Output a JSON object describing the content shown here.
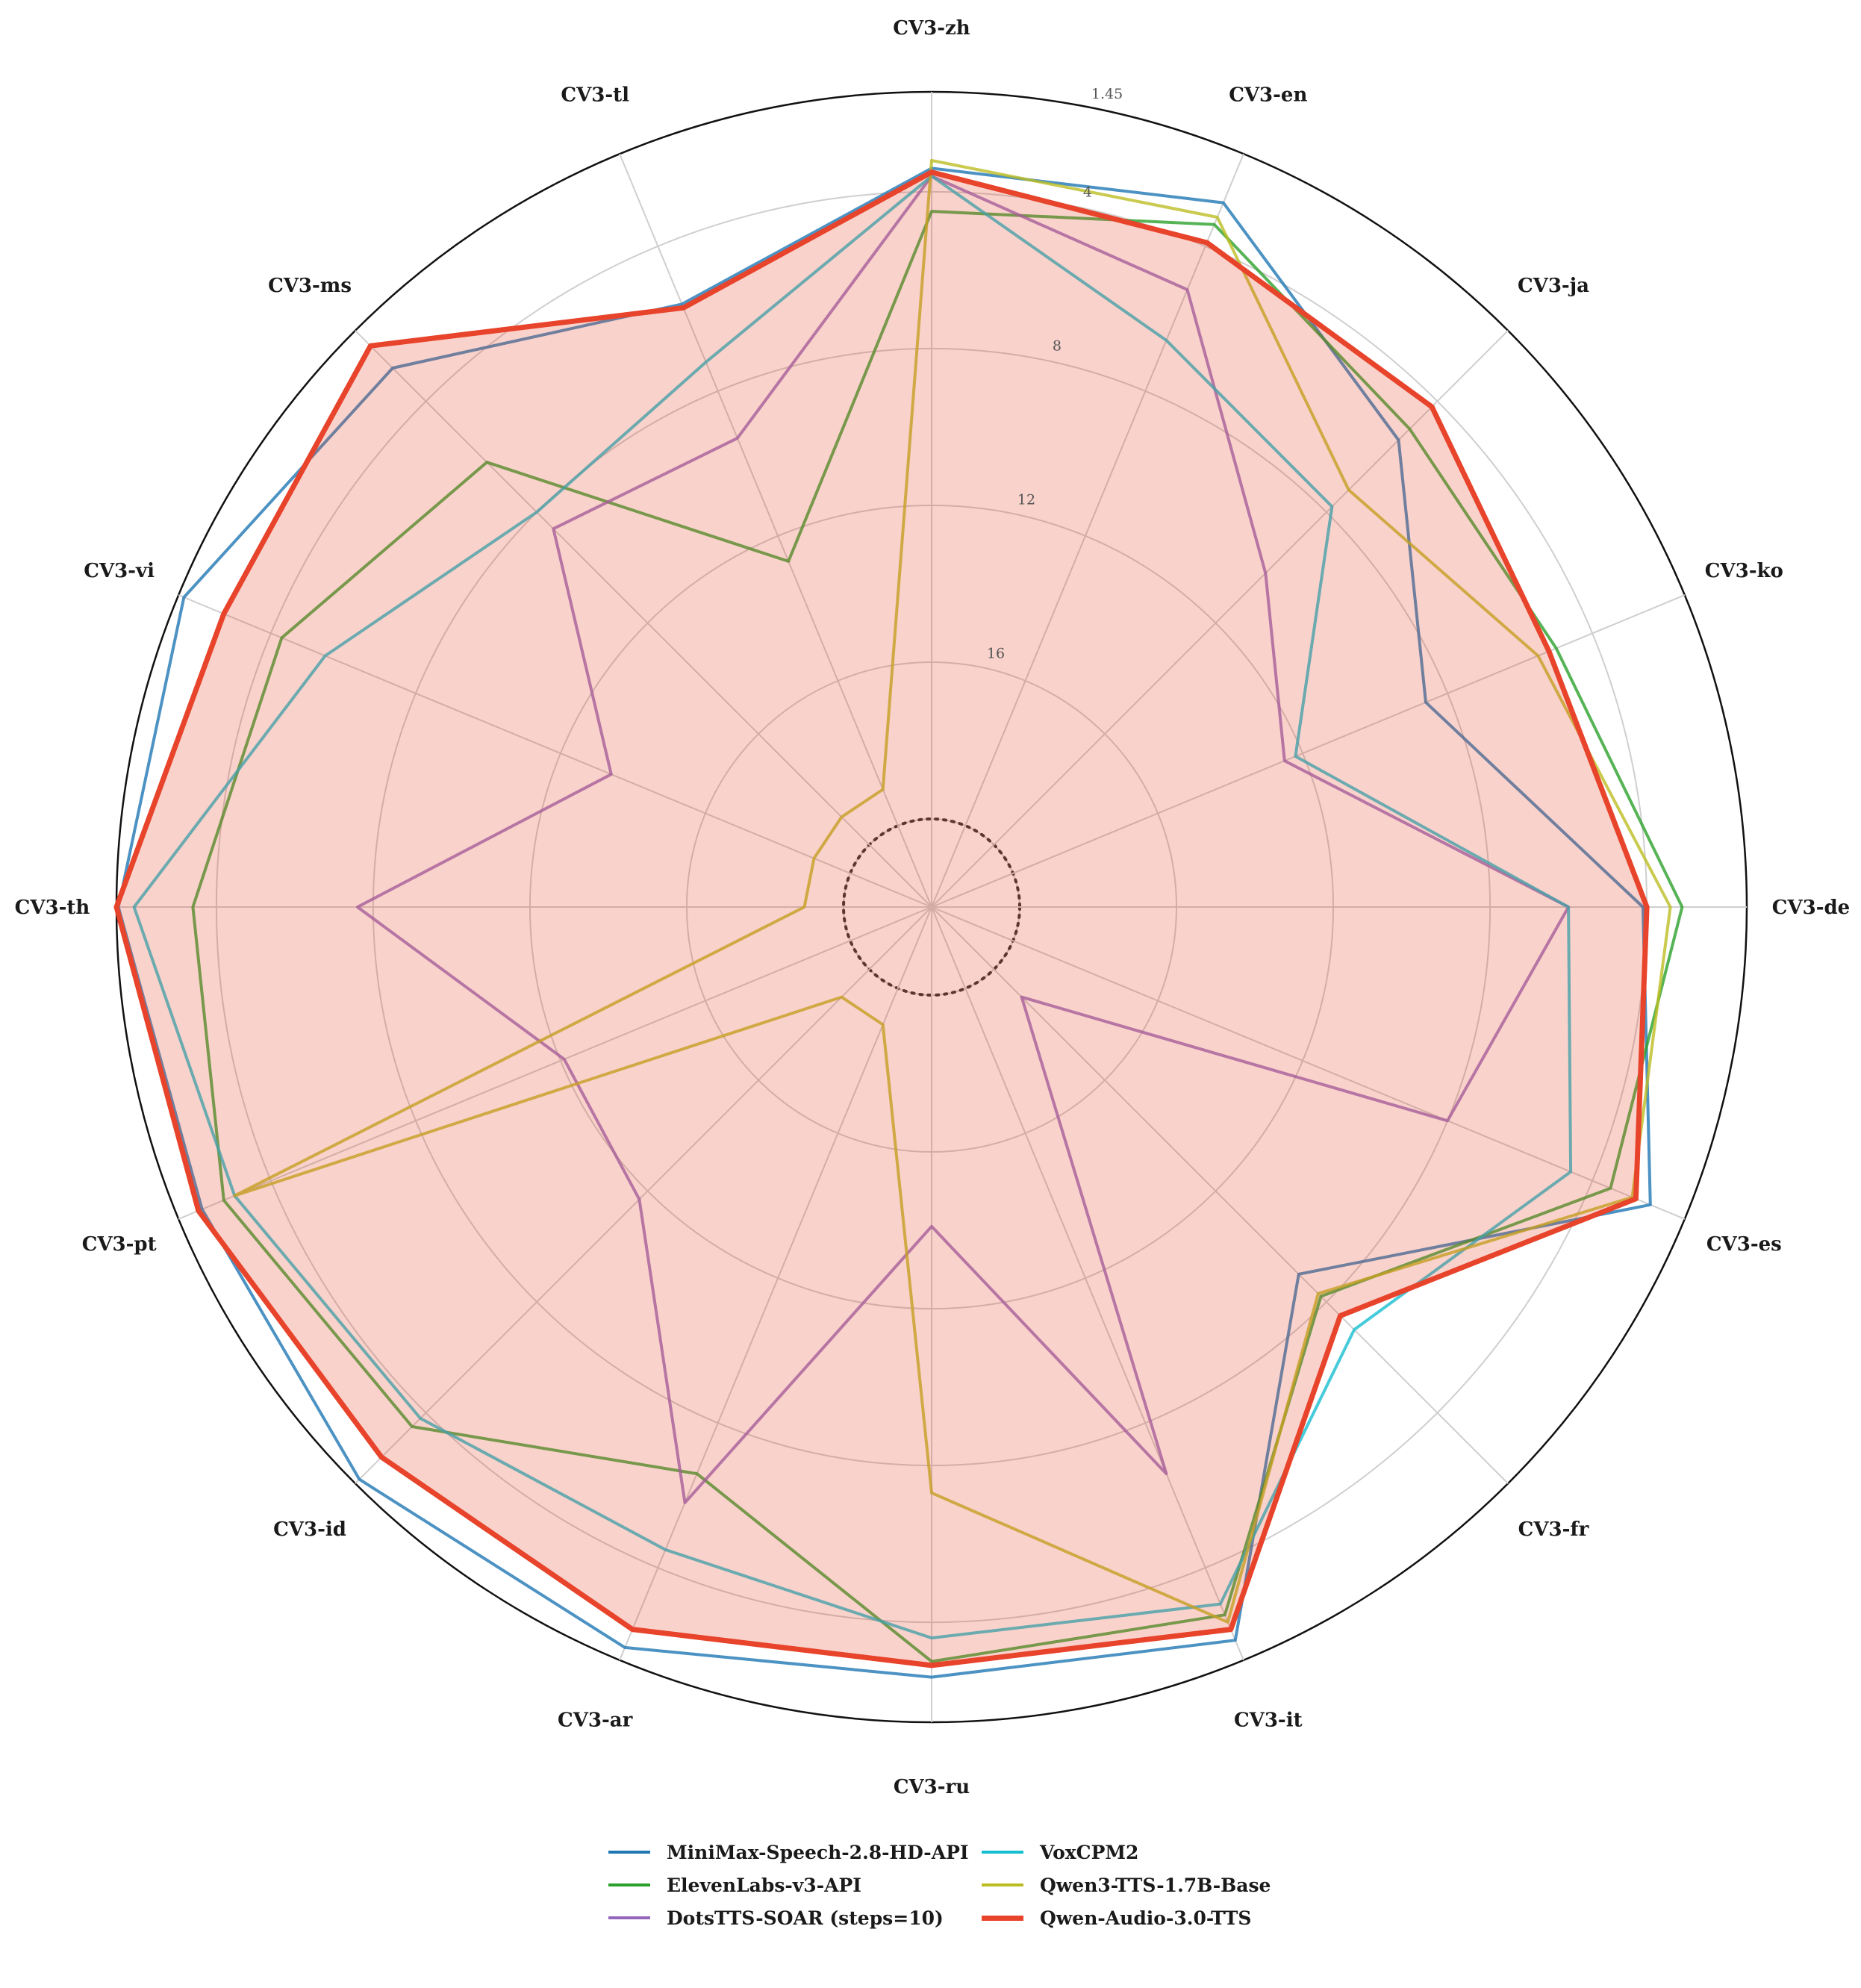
{
  "chart_data": {
    "type": "radar",
    "title": "",
    "categories": [
      "CV3-zh",
      "CV3-en",
      "CV3-ja",
      "CV3-ko",
      "CV3-de",
      "CV3-es",
      "CV3-fr",
      "CV3-it",
      "CV3-ru",
      "CV3-ar",
      "CV3-id",
      "CV3-pt",
      "CV3-th",
      "CV3-vi",
      "CV3-ms",
      "CV3-tl"
    ],
    "ring_labels": [
      "16",
      "12",
      "8",
      "4",
      "1.45"
    ],
    "ring_values": [
      16,
      12,
      8,
      4,
      1.45
    ],
    "axis_range": [
      20,
      1.45
    ],
    "grid": true,
    "legend_position": "bottom-center",
    "series": [
      {
        "name": "MiniMax-Speech-2.8-HD-API",
        "color": "#1f77b4",
        "values": [
          3.4,
          2.8,
          5.4,
          8.6,
          4.1,
          2.4,
          9.0,
          2.0,
          2.6,
          1.8,
          1.6,
          2.1,
          1.5,
          1.6,
          2.8,
          5.6
        ]
      },
      {
        "name": "ElevenLabs-v3-API",
        "color": "#2ca02c",
        "values": [
          4.5,
          3.4,
          5.0,
          5.0,
          3.1,
          3.5,
          8.2,
          2.7,
          3.0,
          6.6,
          3.5,
          2.7,
          3.4,
          4.3,
          6.2,
          12.7
        ]
      },
      {
        "name": "DotsTTS-SOAR (steps=10)",
        "color": "#9467bd",
        "values": [
          3.6,
          5.2,
          10.2,
          12.5,
          6.0,
          8.0,
          19.0,
          6.6,
          14.1,
          5.8,
          11.7,
          12.1,
          7.6,
          13.4,
          8.6,
          9.3
        ]
      },
      {
        "name": "VoxCPM2",
        "color": "#17becf",
        "values": [
          3.6,
          6.6,
          7.8,
          12.2,
          6.0,
          4.6,
          7.0,
          3.0,
          3.6,
          4.5,
          3.8,
          3.0,
          1.9,
          5.5,
          8.0,
          7.2
        ]
      },
      {
        "name": "Qwen3-TTS-1.7B-Base",
        "color": "#bcbd22",
        "values": [
          3.2,
          3.2,
          7.2,
          5.5,
          3.4,
          2.9,
          8.3,
          2.5,
          7.3,
          19.0,
          19.0,
          3.0,
          19.0,
          19.0,
          19.0,
          19.0
        ]
      },
      {
        "name": "Qwen-Audio-3.0-TTS",
        "color": "#e8432b",
        "values": [
          3.5,
          3.9,
          4.2,
          5.2,
          4.0,
          2.8,
          7.5,
          2.3,
          2.9,
          2.3,
          2.4,
          2.0,
          1.45,
          2.7,
          2.0,
          5.7
        ]
      }
    ]
  }
}
